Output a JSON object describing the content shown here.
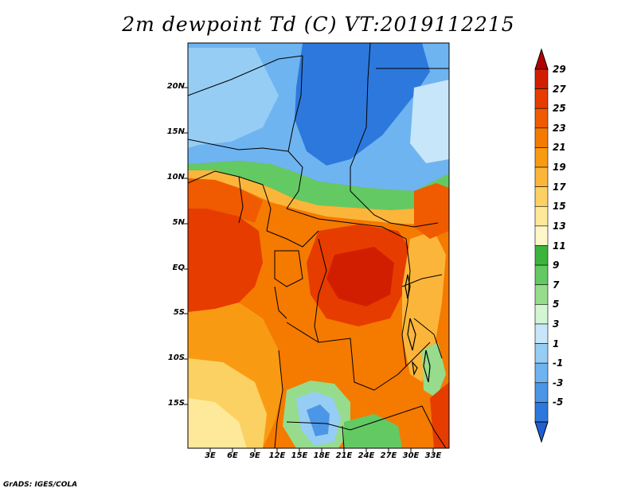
{
  "title": "2m dewpoint Td (C) VT:2019112215",
  "credit": "GrADS: IGES/COLA",
  "map": {
    "y_axis_labels": [
      "20N",
      "15N",
      "10N",
      "5N",
      "EQ",
      "5S",
      "10S",
      "15S"
    ],
    "x_axis_labels": [
      "3E",
      "6E",
      "9E",
      "12E",
      "15E",
      "18E",
      "21E",
      "24E",
      "27E",
      "30E",
      "33E"
    ]
  },
  "colorbar": {
    "labels": [
      "29",
      "27",
      "25",
      "23",
      "21",
      "19",
      "17",
      "15",
      "13",
      "11",
      "9",
      "7",
      "5",
      "3",
      "1",
      "-1",
      "-3",
      "-5"
    ],
    "colors": [
      "#b40000",
      "#d21e00",
      "#e63c00",
      "#f05a00",
      "#f57a00",
      "#f99b12",
      "#fbb53a",
      "#fcd163",
      "#fee99a",
      "#fdf6c8",
      "#3cb43c",
      "#63c963",
      "#96dc8c",
      "#d2f5d2",
      "#c8e6fa",
      "#96cdf5",
      "#6eb4f0",
      "#4b96e6",
      "#2d78dc",
      "#1e5fd2"
    ]
  }
}
